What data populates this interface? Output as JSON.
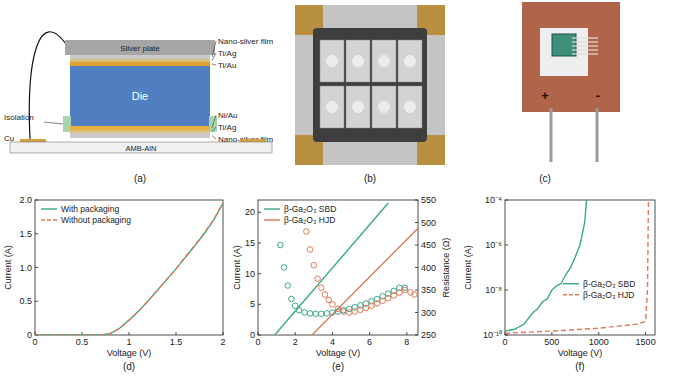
{
  "schematic": {
    "panel_label": "(a)",
    "parts": [
      {
        "label": "Silver plate"
      },
      {
        "label": "Nano-silver film"
      },
      {
        "label": "Ti/Ag"
      },
      {
        "label": "Ti/Au"
      },
      {
        "label": "Die"
      },
      {
        "label": "Isolation"
      },
      {
        "label": "Ni/Au"
      },
      {
        "label": "Ti/Ag"
      },
      {
        "label": "Nano-silver film"
      },
      {
        "label": "Cu"
      },
      {
        "label": "AMB-AlN"
      }
    ]
  },
  "photos": [
    {
      "panel_label": "(b)"
    },
    {
      "panel_label": "(c)",
      "terminals": [
        "+",
        "-"
      ]
    }
  ],
  "chart_data": [
    {
      "type": "line",
      "panel_label": "(d)",
      "x_label": "Voltage (V)",
      "y_label": "Current (A)",
      "xlim": [
        0,
        2
      ],
      "xticks": [
        0,
        0.5,
        1,
        1.5,
        2
      ],
      "ylim": [
        0,
        2
      ],
      "yticks": [
        0,
        0.5,
        {
          "value": 1,
          "label": "1.0"
        },
        1.5,
        {
          "value": 2,
          "label": "2.0"
        }
      ],
      "legend": "upper left",
      "series": [
        {
          "name": "With packaging",
          "color": "#3aa88a",
          "line_style": "solid",
          "x": [
            0,
            0.5,
            0.7,
            0.8,
            0.9,
            1.0,
            1.1,
            1.2,
            1.3,
            1.4,
            1.5,
            1.6,
            1.7,
            1.8,
            1.9,
            2.0
          ],
          "values": [
            0,
            0,
            0,
            0.02,
            0.1,
            0.22,
            0.35,
            0.5,
            0.66,
            0.82,
            0.98,
            1.15,
            1.32,
            1.5,
            1.7,
            1.95
          ]
        },
        {
          "name": "Without packaging",
          "color": "#e07a55",
          "line_style": "dashed",
          "x": [
            0,
            0.5,
            0.7,
            0.8,
            0.9,
            1.0,
            1.1,
            1.2,
            1.3,
            1.4,
            1.5,
            1.6,
            1.7,
            1.8,
            1.9,
            2.0
          ],
          "values": [
            0,
            0,
            0,
            0.02,
            0.1,
            0.22,
            0.35,
            0.5,
            0.66,
            0.82,
            0.98,
            1.16,
            1.33,
            1.51,
            1.71,
            1.96
          ]
        }
      ]
    },
    {
      "type": "line",
      "panel_label": "(e)",
      "x_label": "Voltage (V)",
      "y_label": "Current (A)",
      "y2_label": "Resistance (Ω)",
      "xlim": [
        0,
        8.6
      ],
      "xticks": [
        0,
        2,
        4,
        6,
        8
      ],
      "ylim": [
        0,
        22
      ],
      "yticks": [
        0,
        5,
        10,
        15,
        20
      ],
      "y2lim": [
        250,
        550
      ],
      "y2ticks": [
        250,
        300,
        350,
        400,
        450,
        500,
        550
      ],
      "legend": "upper left",
      "series": [
        {
          "name": "β-Ga₂O₃ SBD",
          "color": "#3aa88a",
          "type": "line",
          "line_style": "solid",
          "x": [
            0.9,
            7.0
          ],
          "values": [
            0,
            21.5
          ]
        },
        {
          "name": "β-Ga₂O₃ HJD",
          "color": "#e07a55",
          "type": "line",
          "line_style": "solid",
          "x": [
            2.9,
            8.6
          ],
          "values": [
            0,
            17.4
          ]
        },
        {
          "color": "#3aa88a",
          "type": "scatter",
          "marker": "circle",
          "axis": "y2",
          "x": [
            1.2,
            1.4,
            1.6,
            1.8,
            2.0,
            2.2,
            2.5,
            2.8,
            3.1,
            3.4,
            3.7,
            4.0,
            4.3,
            4.6,
            4.9,
            5.2,
            5.5,
            5.8,
            6.1,
            6.4,
            6.7,
            7.0,
            7.3,
            7.6,
            7.9
          ],
          "values": [
            450,
            400,
            360,
            330,
            315,
            305,
            300,
            298,
            297,
            297,
            298,
            300,
            302,
            305,
            308,
            312,
            316,
            320,
            325,
            330,
            336,
            342,
            348,
            355,
            355
          ]
        },
        {
          "color": "#e07a55",
          "type": "scatter",
          "marker": "circle",
          "axis": "y2",
          "x": [
            2.6,
            2.8,
            3.0,
            3.2,
            3.4,
            3.6,
            3.8,
            4.0,
            4.3,
            4.6,
            4.9,
            5.2,
            5.5,
            5.8,
            6.1,
            6.4,
            6.7,
            7.0,
            7.3,
            7.6,
            7.9,
            8.2,
            8.4
          ],
          "values": [
            480,
            440,
            405,
            375,
            355,
            340,
            328,
            318,
            308,
            302,
            300,
            302,
            306,
            310,
            315,
            320,
            326,
            332,
            338,
            344,
            350,
            345,
            340
          ]
        }
      ]
    },
    {
      "type": "line",
      "panel_label": "(f)",
      "x_label": "Voltage (V)",
      "y_label": "Current (A)",
      "log": "y",
      "xlim": [
        0,
        1600
      ],
      "xticks": [
        0,
        500,
        1000,
        1500
      ],
      "ylim": [
        1e-10,
        0.0001
      ],
      "yticks": [
        {
          "value": 1e-10,
          "label": "10⁻¹⁰"
        },
        {
          "value": 1e-08,
          "label": "10⁻⁸"
        },
        {
          "value": 1e-06,
          "label": "10⁻⁶"
        },
        {
          "value": 0.0001,
          "label": "10⁻⁴"
        }
      ],
      "legend": "right",
      "series": [
        {
          "name": "β-Ga₂O₃ SBD",
          "color": "#3aa88a",
          "line_style": "solid",
          "x": [
            0,
            100,
            200,
            300,
            350,
            400,
            450,
            500,
            550,
            600,
            650,
            700,
            750,
            800,
            850,
            870
          ],
          "values": [
            1.5e-10,
            1.8e-10,
            3e-10,
            1e-09,
            1.5e-09,
            3e-09,
            4e-09,
            1e-08,
            1.5e-08,
            2e-08,
            5e-08,
            1e-07,
            3e-07,
            1e-06,
            1e-05,
            0.0001
          ]
        },
        {
          "name": "β-Ga₂O₃ HJD",
          "color": "#e07a55",
          "line_style": "dashed",
          "x": [
            0,
            500,
            1000,
            1400,
            1500,
            1520,
            1530
          ],
          "values": [
            1.2e-10,
            1.5e-10,
            2e-10,
            3e-10,
            4e-10,
            1e-08,
            0.0001
          ]
        }
      ]
    }
  ]
}
